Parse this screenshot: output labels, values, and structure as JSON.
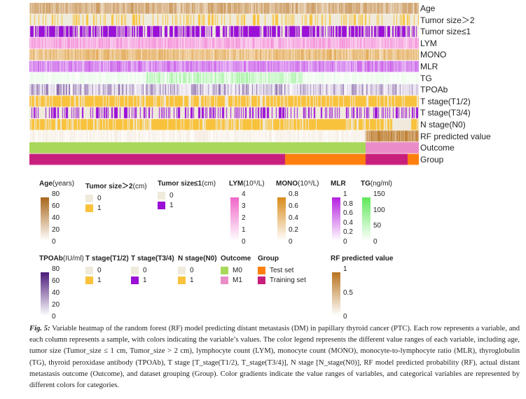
{
  "rows": [
    {
      "label": "Age",
      "kind": "grad",
      "color": "#b8731f"
    },
    {
      "label": "Tumor size＞2",
      "kind": "cat",
      "colors": [
        "#efeadb",
        "#f9c23c"
      ],
      "p": 0.25
    },
    {
      "label": "Tumor size≤1",
      "kind": "cat",
      "colors": [
        "#efeadb",
        "#9b10d6"
      ],
      "p": 0.7
    },
    {
      "label": "LYM",
      "kind": "grad",
      "color": "#f065c9"
    },
    {
      "label": "MONO",
      "kind": "grad",
      "color": "#d98b1a"
    },
    {
      "label": "MLR",
      "kind": "grad",
      "color": "#b520e0"
    },
    {
      "label": "TG",
      "kind": "grad",
      "color": "#5ee85a"
    },
    {
      "label": "TPOAb",
      "kind": "grad",
      "color": "#4b1a7a"
    },
    {
      "label": "T stage(T1/2)",
      "kind": "cat",
      "colors": [
        "#efeadb",
        "#f9c23c"
      ],
      "p": 0.8
    },
    {
      "label": "T stage(T3/4)",
      "kind": "cat",
      "colors": [
        "#efeadb",
        "#9b10d6"
      ],
      "p": 0.35
    },
    {
      "label": "N stage(N0)",
      "kind": "cat",
      "colors": [
        "#efeadb",
        "#f9c23c"
      ],
      "p": 0.75
    },
    {
      "label": "RF predicted value",
      "kind": "rf",
      "color": "#b8731f"
    },
    {
      "label": "Outcome",
      "kind": "outcome",
      "colors": [
        "#a8d85a",
        "#e98dc8"
      ]
    },
    {
      "label": "Group",
      "kind": "group",
      "colors": [
        "#c81e7c",
        "#ff7f0e"
      ]
    }
  ],
  "legend1": [
    {
      "title": "Age",
      "unit": "(years)",
      "color": "#a8661a",
      "ticks": [
        "80",
        "60",
        "40",
        "20",
        "0"
      ]
    },
    {
      "title": "Tumor size＞2",
      "unit": "(cm)",
      "cats": [
        [
          "0",
          "#efeadb"
        ],
        [
          "1",
          "#f9c23c"
        ]
      ]
    },
    {
      "title": "Tumor size≤1",
      "unit": "(cm)",
      "cats": [
        [
          "0",
          "#efeadb"
        ],
        [
          "1",
          "#9b10d6"
        ]
      ]
    },
    {
      "title": "LYM",
      "unit": "(10⁹/L)",
      "color": "#f065c9",
      "ticks": [
        "4",
        "3",
        "2",
        "1",
        "0"
      ]
    },
    {
      "title": "MONO",
      "unit": "(10⁹/L)",
      "color": "#d98b1a",
      "ticks": [
        "0.8",
        "0.6",
        "0.4",
        "0.2",
        "0"
      ]
    },
    {
      "title": "MLR",
      "unit": "",
      "color": "#b520e0",
      "ticks": [
        "1",
        "0.8",
        "0.6",
        "0.4",
        "0.2",
        "0"
      ]
    },
    {
      "title": "TG",
      "unit": "(ng/ml)",
      "color": "#5ee85a",
      "ticks": [
        "150",
        "100",
        "50",
        "0"
      ]
    }
  ],
  "legend2": [
    {
      "title": "TPOAb",
      "unit": "(IU/ml)",
      "color": "#4b1a7a",
      "ticks": [
        "80",
        "60",
        "40",
        "20",
        "0"
      ]
    },
    {
      "title": "T stage(T1/2)",
      "unit": "",
      "cats": [
        [
          "0",
          "#efeadb"
        ],
        [
          "1",
          "#f9c23c"
        ]
      ]
    },
    {
      "title": "T stage(T3/4)",
      "unit": "",
      "cats": [
        [
          "0",
          "#efeadb"
        ],
        [
          "1",
          "#9b10d6"
        ]
      ]
    },
    {
      "title": "N stage(N0)",
      "unit": "",
      "cats": [
        [
          "0",
          "#efeadb"
        ],
        [
          "1",
          "#f9c23c"
        ]
      ]
    },
    {
      "title": "Outcome",
      "unit": "",
      "cats": [
        [
          "M0",
          "#a8d85a"
        ],
        [
          "M1",
          "#e98dc8"
        ]
      ]
    },
    {
      "title": "Group",
      "unit": "",
      "cats": [
        [
          "Test set",
          "#ff7f0e"
        ],
        [
          "Training set",
          "#c81e7c"
        ]
      ]
    },
    {
      "title": "RF predicted value",
      "unit": "",
      "color": "#b8731f",
      "ticks": [
        "1",
        "0.5",
        "0"
      ]
    }
  ],
  "caption": {
    "label": "Fig. 5:",
    "text": "Variable heatmap of the random forest (RF) model predicting distant metastasis (DM) in papillary thyroid cancer (PTC). Each row represents a variable, and each column represents a sample, with colors indicating the variable’s values. The color legend represents the different value ranges of each variable, including age, tumor size (Tumor_size ≤ 1 cm, Tumor_size > 2 cm), lymphocyte count (LYM), monocyte count (MONO), monocyte-to-lymphocyte ratio (MLR), thyroglobulin (TG), thyroid peroxidase antibody (TPOAb), T stage [T_stage(T1/2), T_stage(T3/4)], N stage [N_stage(N0)], RF model predicted probability (RF), actual distant metastasis outcome (Outcome), and dataset grouping (Group). Color gradients indicate the value ranges of variables, and categorical variables are represented by different colors for categories."
  }
}
